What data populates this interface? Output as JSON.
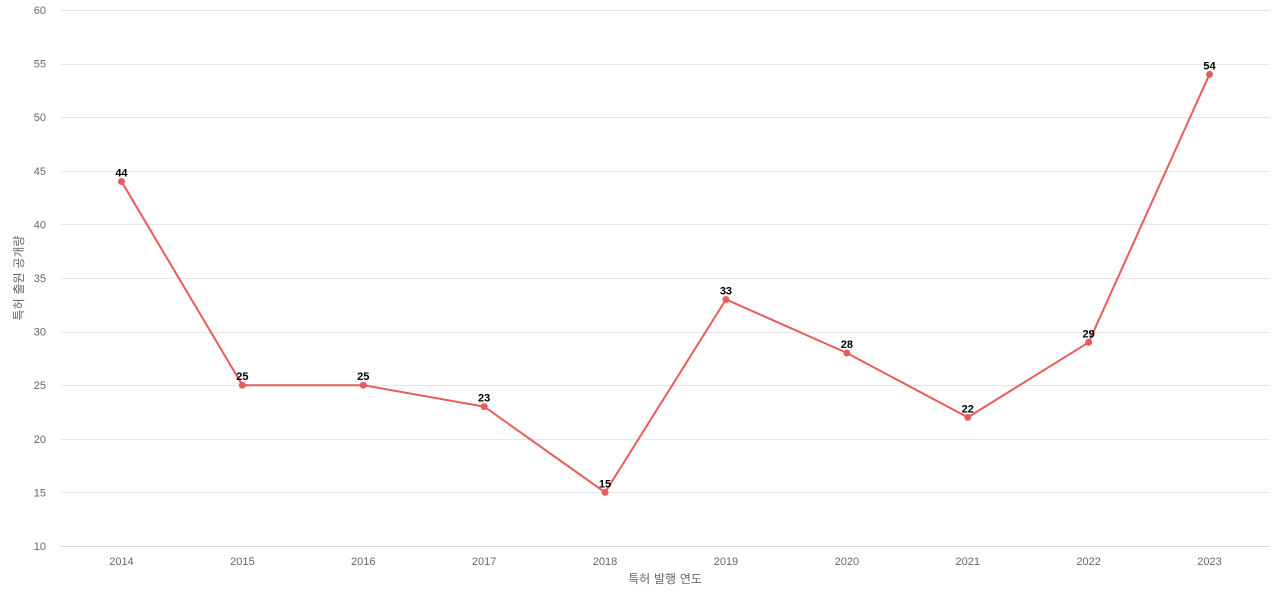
{
  "chart_data": {
    "type": "line",
    "title": "",
    "xlabel": "특허 발행 연도",
    "ylabel": "특허 출원 공개량",
    "categories": [
      "2014",
      "2015",
      "2016",
      "2017",
      "2018",
      "2019",
      "2020",
      "2021",
      "2022",
      "2023"
    ],
    "series": [
      {
        "values": [
          44,
          25,
          25,
          23,
          15,
          33,
          28,
          22,
          29,
          54
        ],
        "color": "#e85c5c"
      }
    ],
    "ylim": [
      10,
      60
    ],
    "yticks": [
      10,
      15,
      20,
      25,
      30,
      35,
      40,
      45,
      50,
      55,
      60
    ],
    "grid": true,
    "data_labels": true,
    "legend": "none"
  }
}
